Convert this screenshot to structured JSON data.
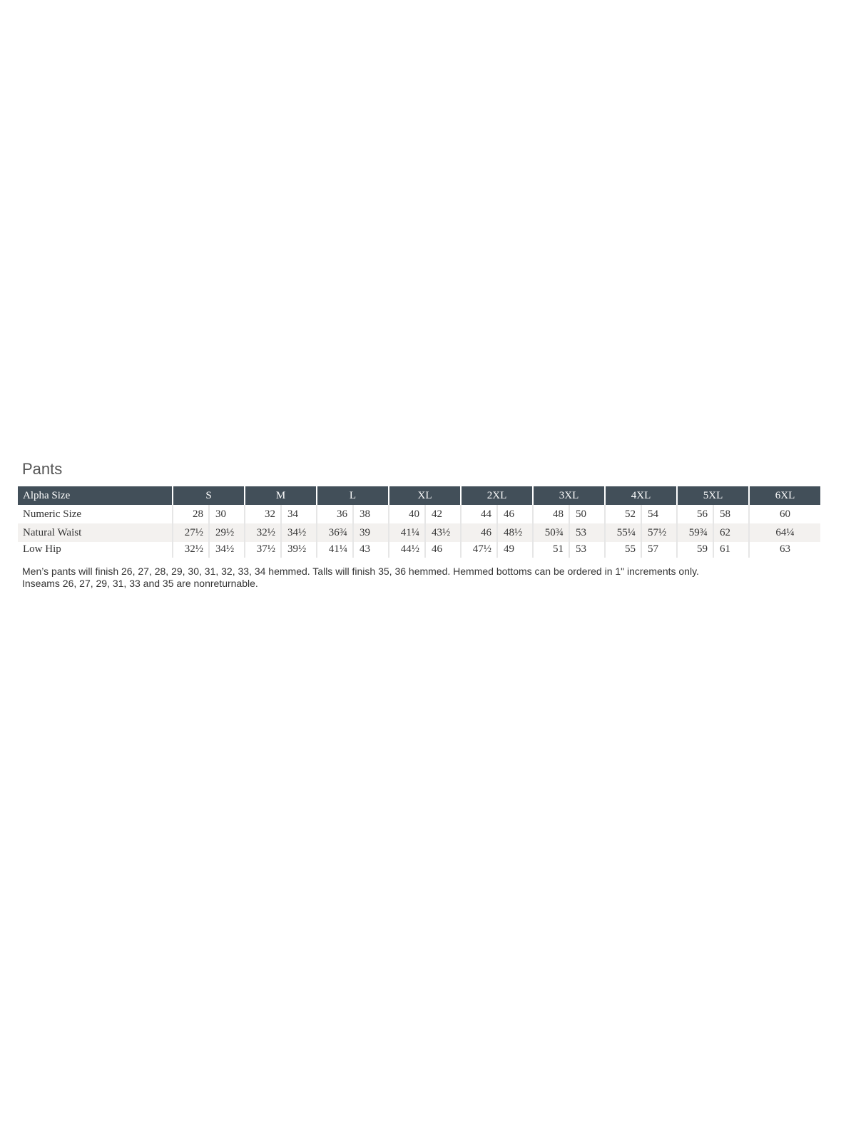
{
  "title": "Pants",
  "table": {
    "header_label": "Alpha Size",
    "sizes": [
      "S",
      "M",
      "L",
      "XL",
      "2XL",
      "3XL",
      "4XL",
      "5XL",
      "6XL"
    ],
    "rows": [
      {
        "label": "Numeric Size",
        "values": [
          "28",
          "30",
          "32",
          "34",
          "36",
          "38",
          "40",
          "42",
          "44",
          "46",
          "48",
          "50",
          "52",
          "54",
          "56",
          "58",
          "60"
        ]
      },
      {
        "label": "Natural Waist",
        "values": [
          "27½",
          "29½",
          "32½",
          "34½",
          "36¾",
          "39",
          "41¼",
          "43½",
          "46",
          "48½",
          "50¾",
          "53",
          "55¼",
          "57½",
          "59¾",
          "62",
          "64¼"
        ]
      },
      {
        "label": "Low Hip",
        "values": [
          "32½",
          "34½",
          "37½",
          "39½",
          "41¼",
          "43",
          "44½",
          "46",
          "47½",
          "49",
          "51",
          "53",
          "55",
          "57",
          "59",
          "61",
          "63"
        ]
      }
    ]
  },
  "notes": [
    "Men’s pants will finish 26, 27, 28, 29, 30, 31, 32, 33, 34 hemmed. Talls will finish 35, 36 hemmed. Hemmed bottoms can be ordered in 1\" increments only.",
    "Inseams 26, 27, 29, 31, 33 and 35 are nonreturnable."
  ],
  "colors": {
    "header_bg": "#424f59",
    "alt_row_bg": "#f3f1ef"
  }
}
